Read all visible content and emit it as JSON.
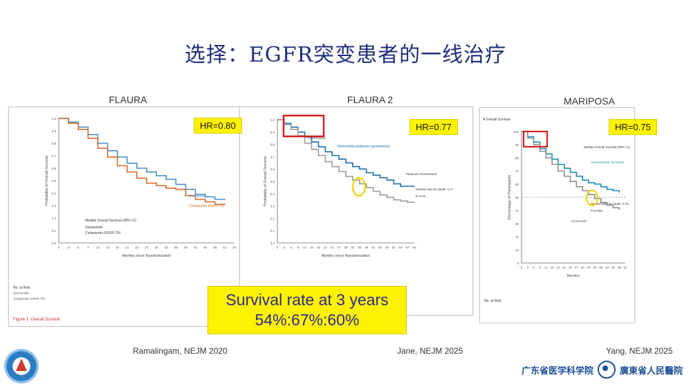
{
  "title": "选择：EGFR突变患者的一线治疗",
  "summary": {
    "line1": "Survival rate at 3 years",
    "line2": "54%:67%:60%"
  },
  "footer": {
    "org1": "广东省医学科学院",
    "org2": "廣東省人民醫院"
  },
  "colors": {
    "title": "#1f2f7a",
    "highlight": "#fff200",
    "red_box": "#d42020",
    "yellow_circle": "#f2d200"
  },
  "chart_data": [
    {
      "type": "line",
      "title": "FLAURA",
      "hr_label": "HR=0.80",
      "citation": "Ramalingam, NEJM 2020",
      "xlabel": "Months since Randomization",
      "ylabel": "Probability of Overall Survival",
      "xlim": [
        0,
        54
      ],
      "ylim": [
        0,
        1.0
      ],
      "yticks": [
        "0.0",
        "0.1",
        "0.2",
        "0.3",
        "0.4",
        "0.5",
        "0.6",
        "0.7",
        "0.8",
        "0.9",
        "1.0"
      ],
      "xticks": [
        "0",
        "3",
        "6",
        "9",
        "12",
        "15",
        "18",
        "21",
        "24",
        "27",
        "30",
        "33",
        "36",
        "39",
        "42",
        "45",
        "48",
        "51",
        "54"
      ],
      "legend_title": "Median Overall Survival (95% CI)",
      "figure_caption": "Figure 1. Overall Survival.",
      "risk_header": "No. at Risk",
      "risk_rows": [
        "Osimertinib",
        "Comparator EGFR-TKI"
      ],
      "series": [
        {
          "name": "Osimertinib",
          "color": "#4a90c8",
          "x": [
            0,
            3,
            6,
            9,
            12,
            15,
            18,
            21,
            24,
            27,
            30,
            33,
            36,
            39,
            42,
            45,
            48,
            51
          ],
          "y": [
            1.0,
            0.97,
            0.93,
            0.87,
            0.8,
            0.74,
            0.69,
            0.64,
            0.6,
            0.57,
            0.54,
            0.51,
            0.47,
            0.43,
            0.39,
            0.37,
            0.35,
            0.35
          ]
        },
        {
          "name": "Comparator EGFR-TKI",
          "color": "#d96b2b",
          "x": [
            0,
            3,
            6,
            9,
            12,
            15,
            18,
            21,
            24,
            27,
            30,
            33,
            36,
            39,
            42,
            45,
            48,
            51
          ],
          "y": [
            1.0,
            0.96,
            0.91,
            0.84,
            0.76,
            0.69,
            0.62,
            0.57,
            0.52,
            0.48,
            0.46,
            0.44,
            0.43,
            0.38,
            0.35,
            0.33,
            0.31,
            0.31
          ]
        }
      ]
    },
    {
      "type": "line",
      "title": "FLAURA 2",
      "hr_label": "HR=0.77",
      "citation": "Jane, NEJM 2025",
      "xlabel": "Months since Randomization",
      "ylabel": "Probability of Overall Survival",
      "xlim": [
        0,
        60
      ],
      "ylim": [
        0,
        1.0
      ],
      "yticks": [
        "0.0",
        "0.1",
        "0.2",
        "0.3",
        "0.4",
        "0.5",
        "0.6",
        "0.7",
        "0.8",
        "0.9",
        "1.0"
      ],
      "xticks": [
        "0",
        "3",
        "6",
        "9",
        "12",
        "15",
        "18",
        "21",
        "24",
        "27",
        "30",
        "33",
        "36",
        "39",
        "42",
        "45",
        "48",
        "51",
        "54",
        "57",
        "60"
      ],
      "risk_header": "No. at Risk",
      "annotations": [
        "Osimertinib+platinum–pemetrexed",
        "Osimertinib",
        "Platinum–Pemetrexed",
        "Hazard ratio for death, 0.77",
        "P=0.02"
      ],
      "series": [
        {
          "name": "Osimertinib+platinum–pemetrexed",
          "color": "#1e6fa8",
          "x": [
            0,
            3,
            6,
            9,
            12,
            15,
            18,
            21,
            24,
            27,
            30,
            33,
            36,
            39,
            42,
            45,
            48,
            51,
            54,
            57,
            60
          ],
          "y": [
            1.0,
            0.97,
            0.94,
            0.9,
            0.86,
            0.82,
            0.78,
            0.74,
            0.71,
            0.68,
            0.65,
            0.62,
            0.6,
            0.57,
            0.55,
            0.53,
            0.51,
            0.48,
            0.46,
            0.46,
            0.46
          ]
        },
        {
          "name": "Osimertinib",
          "color": "#9a9a9a",
          "x": [
            0,
            3,
            6,
            9,
            12,
            15,
            18,
            21,
            24,
            27,
            30,
            33,
            36,
            39,
            42,
            45,
            48,
            51,
            54,
            57,
            60
          ],
          "y": [
            1.0,
            0.96,
            0.92,
            0.87,
            0.81,
            0.76,
            0.71,
            0.66,
            0.62,
            0.58,
            0.54,
            0.51,
            0.48,
            0.45,
            0.42,
            0.39,
            0.37,
            0.35,
            0.34,
            0.33,
            0.33
          ]
        }
      ]
    },
    {
      "type": "line",
      "title": "MARIPOSA",
      "hr_label": "HR=0.75",
      "citation": "Yang, NEJM 2025",
      "xlabel": "Months",
      "ylabel": "Percentage of Participants",
      "xlim": [
        0,
        51
      ],
      "ylim": [
        0,
        100
      ],
      "yticks": [
        "0",
        "10",
        "20",
        "30",
        "40",
        "50",
        "60",
        "70",
        "80",
        "90",
        "100"
      ],
      "xticks": [
        "0",
        "3",
        "6",
        "9",
        "12",
        "15",
        "18",
        "21",
        "24",
        "27",
        "30",
        "33",
        "36",
        "39",
        "42",
        "45",
        "48",
        "51"
      ],
      "panel_label": "A  Overall Survival",
      "risk_header": "No. at Risk",
      "annotations": [
        "Amivantamab–lazertinib",
        "Osimertinib",
        "Median Overall Survival (95% CI)",
        "Hazard ratio for death, 0.75",
        "P<0.005"
      ],
      "series": [
        {
          "name": "Amivantamab–lazertinib",
          "color": "#1a8fb0",
          "x": [
            0,
            3,
            6,
            9,
            12,
            15,
            18,
            21,
            24,
            27,
            30,
            33,
            36,
            39,
            42,
            45,
            48
          ],
          "y": [
            100,
            96,
            92,
            87,
            83,
            79,
            75,
            72,
            69,
            66,
            63,
            61,
            60,
            58,
            56,
            55,
            54
          ]
        },
        {
          "name": "Osimertinib",
          "color": "#8c8c8c",
          "x": [
            0,
            3,
            6,
            9,
            12,
            15,
            18,
            21,
            24,
            27,
            30,
            33,
            36,
            39,
            42,
            45,
            48
          ],
          "y": [
            100,
            95,
            90,
            85,
            80,
            75,
            70,
            66,
            62,
            58,
            55,
            52,
            49,
            46,
            44,
            42,
            41
          ]
        }
      ]
    }
  ]
}
